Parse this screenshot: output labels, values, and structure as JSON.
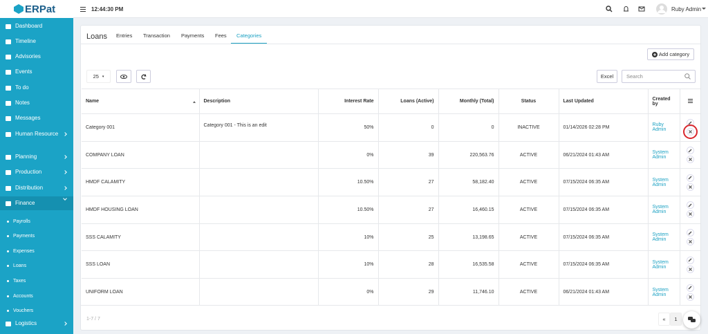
{
  "sidebar": {
    "logo": "ERPat",
    "menu": [
      {
        "label": "Dashboard",
        "arrow": false
      },
      {
        "label": "Timeline",
        "arrow": false
      },
      {
        "label": "Advisories",
        "arrow": false
      },
      {
        "label": "Events",
        "arrow": false
      },
      {
        "label": "To do",
        "arrow": false
      },
      {
        "label": "Notes",
        "arrow": false
      },
      {
        "label": "Messages",
        "arrow": false
      },
      {
        "label": "Human Resource",
        "arrow": true
      },
      {
        "label": "Planning",
        "arrow": true
      },
      {
        "label": "Production",
        "arrow": true
      },
      {
        "label": "Distribution",
        "arrow": true
      },
      {
        "label": "Finance",
        "arrow": true,
        "active": true,
        "submenu": [
          "Payrolls",
          "Payments",
          "Expenses",
          "Loans",
          "Taxes",
          "Accounts",
          "Vouchers"
        ]
      },
      {
        "label": "Logistics",
        "arrow": true
      }
    ]
  },
  "topbar": {
    "time": "12:44:30 PM",
    "user": "Ruby Admin"
  },
  "page": {
    "title": "Loans",
    "tabs": [
      "Entries",
      "Transaction",
      "Payments",
      "Fees",
      "Categories"
    ],
    "active_tab": 4,
    "add_button": "Add category",
    "page_size": "25",
    "excel": "Excel",
    "search_placeholder": "Search"
  },
  "table": {
    "headers": [
      "Name",
      "Description",
      "Interest Rate",
      "Loans (Active)",
      "Monthly (Total)",
      "Status",
      "Last Updated",
      "Created by"
    ],
    "rows": [
      [
        "Category 001",
        "Category 001 - This is an edit",
        "50%",
        "0",
        "0",
        "INACTIVE",
        "01/14/2026 02:28 PM",
        "Ruby Admin"
      ],
      [
        "COMPANY LOAN",
        "",
        "0%",
        "39",
        "220,563.76",
        "ACTIVE",
        "06/21/2024 01:43 AM",
        "System Admin"
      ],
      [
        "HMDF CALAMITY",
        "",
        "10.50%",
        "27",
        "58,182.40",
        "ACTIVE",
        "07/15/2024 06:35 AM",
        "System Admin"
      ],
      [
        "HMDF HOUSING LOAN",
        "",
        "10.50%",
        "27",
        "16,460.15",
        "ACTIVE",
        "07/15/2024 06:35 AM",
        "System Admin"
      ],
      [
        "SSS CALAMITY",
        "",
        "10%",
        "25",
        "13,198.65",
        "ACTIVE",
        "07/15/2024 06:35 AM",
        "System Admin"
      ],
      [
        "SSS LOAN",
        "",
        "10%",
        "28",
        "16,535.58",
        "ACTIVE",
        "07/15/2024 06:35 AM",
        "System Admin"
      ],
      [
        "UNIFORM LOAN",
        "",
        "0%",
        "29",
        "11,746.10",
        "ACTIVE",
        "06/21/2024 01:43 AM",
        "System Admin"
      ]
    ]
  },
  "footer": {
    "range": "1-7 / 7",
    "prev": "«",
    "page": "1"
  }
}
